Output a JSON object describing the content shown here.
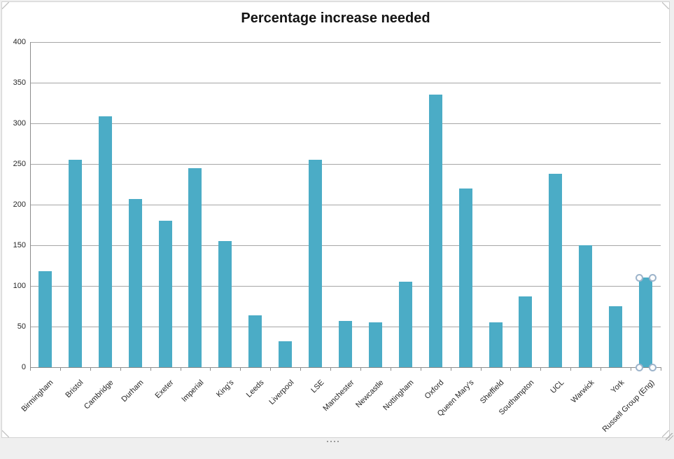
{
  "window": {
    "background_color": "#EFEFEF",
    "chart_frame": {
      "background_color": "#FFFFFF",
      "border_color": "#D2D2D2"
    }
  },
  "chart_data": {
    "type": "bar",
    "title": "Percentage increase needed",
    "categories": [
      "Birmingham",
      "Bristol",
      "Cambridge",
      "Durham",
      "Exeter",
      "Imperial",
      "King's",
      "Leeds",
      "Liverpool",
      "LSE",
      "Manchester",
      "Newcastle",
      "Nottingham",
      "Oxford",
      "Queen Mary's",
      "Sheffield",
      "Southampton",
      "UCL",
      "Warwick",
      "York",
      "Russell Group (Eng)"
    ],
    "values": [
      118,
      255,
      309,
      207,
      180,
      245,
      155,
      64,
      32,
      255,
      57,
      55,
      105,
      335,
      220,
      55,
      87,
      238,
      150,
      75,
      110
    ],
    "xlabel": "",
    "ylabel": "",
    "ylim": [
      0,
      400
    ],
    "yticks": [
      0,
      50,
      100,
      150,
      200,
      250,
      300,
      350,
      400
    ],
    "grid": true,
    "legend": false,
    "bar_color": "#4BACC6",
    "gridline_color": "#A6A6A6",
    "axis_line_color": "#8C8C8C",
    "axis_text_color": "#262626",
    "title_color": "#141414",
    "selected_category": "Russell Group (Eng)",
    "selection_handle_border_color": "#9DB4CB"
  }
}
